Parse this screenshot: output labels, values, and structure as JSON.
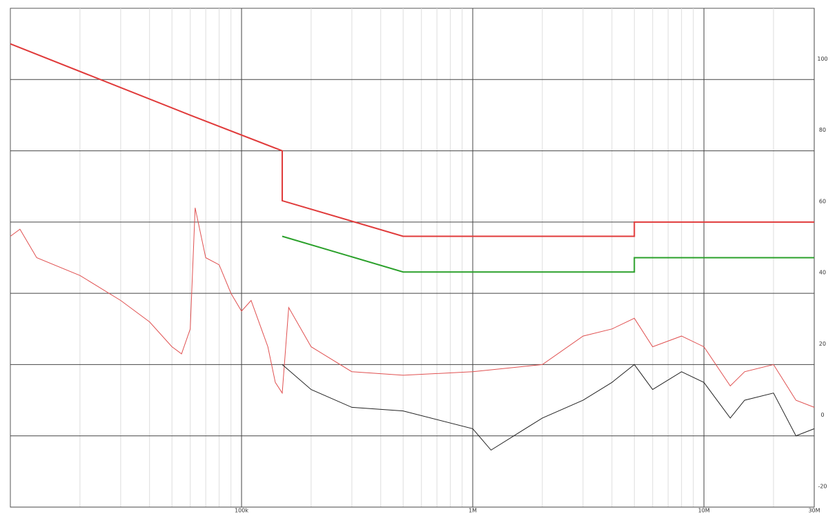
{
  "chart_data": {
    "type": "line",
    "xscale": "log",
    "xlim": [
      10000,
      30000000
    ],
    "ylim": [
      -20,
      120
    ],
    "xticks": [
      {
        "value": 100000,
        "label": "100k"
      },
      {
        "value": 1000000,
        "label": "1M"
      },
      {
        "value": 10000000,
        "label": "10M"
      },
      {
        "value": 30000000,
        "label": "30M"
      }
    ],
    "yticks": [
      -20,
      0,
      20,
      40,
      60,
      80,
      100
    ],
    "grid": true,
    "series": [
      {
        "color": "#e03a3a",
        "x": [
          10000,
          60000,
          150000,
          150000,
          500000,
          5000000,
          5000000,
          30000000
        ],
        "values": [
          110,
          90,
          80,
          66,
          56,
          56,
          60,
          60
        ]
      },
      {
        "color": "#2aa02a",
        "x": [
          150000,
          500000,
          5000000,
          5000000,
          30000000
        ],
        "values": [
          56,
          46,
          46,
          50,
          50
        ]
      },
      {
        "color": "#e05050",
        "x": [
          10000,
          11000,
          13000,
          20000,
          30000,
          40000,
          50000,
          55000,
          60000,
          63000,
          70000,
          80000,
          90000,
          100000,
          110000,
          130000,
          140000,
          150000,
          160000,
          200000,
          300000,
          500000,
          1000000,
          2000000,
          3000000,
          4000000,
          5000000,
          6000000,
          8000000,
          10000000,
          13000000,
          15000000,
          20000000,
          25000000,
          30000000
        ],
        "values": [
          56,
          58,
          50,
          45,
          38,
          32,
          25,
          23,
          30,
          64,
          50,
          48,
          40,
          35,
          38,
          25,
          15,
          12,
          36,
          25,
          18,
          17,
          18,
          20,
          28,
          30,
          33,
          25,
          28,
          25,
          14,
          18,
          20,
          10,
          8
        ]
      },
      {
        "color": "#222222",
        "x": [
          150000,
          200000,
          300000,
          500000,
          1000000,
          1200000,
          2000000,
          3000000,
          4000000,
          5000000,
          6000000,
          8000000,
          10000000,
          13000000,
          15000000,
          20000000,
          25000000,
          30000000
        ],
        "values": [
          20,
          13,
          8,
          7,
          2,
          -4,
          5,
          10,
          15,
          20,
          13,
          18,
          15,
          5,
          10,
          12,
          0,
          2
        ]
      }
    ]
  }
}
